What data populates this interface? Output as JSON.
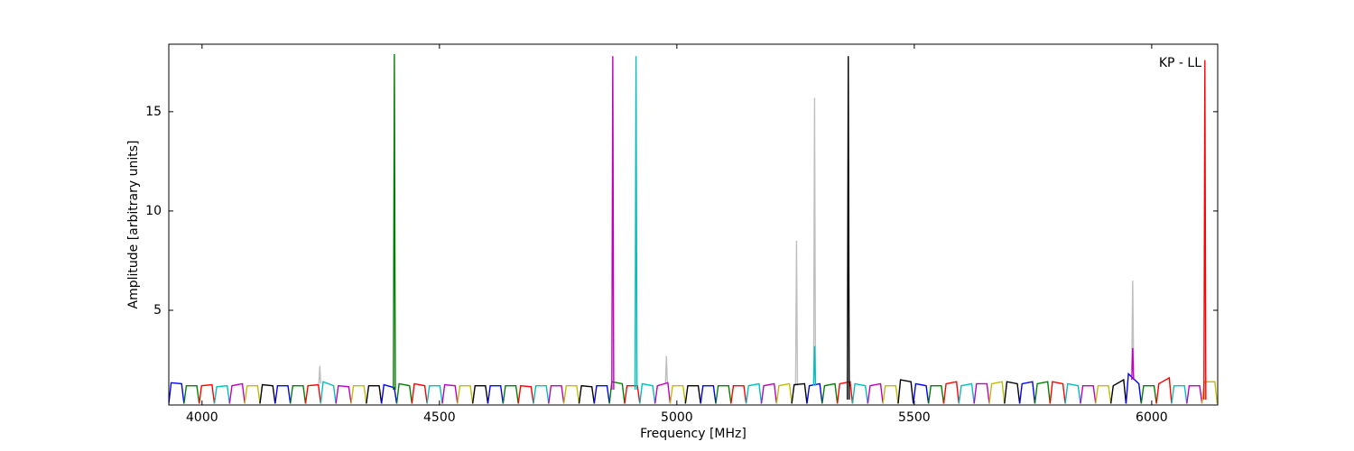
{
  "chart_data": {
    "type": "line",
    "xlabel": "Frequency [MHz]",
    "ylabel": "Amplitude [arbitrary units]",
    "annotation": "KP - LL",
    "xlim": [
      3930,
      6139
    ],
    "ylim": [
      0.23,
      18.4
    ],
    "xticks": [
      4000,
      4500,
      5000,
      5500,
      6000
    ],
    "yticks": [
      5,
      10,
      15
    ],
    "series": [
      {
        "color": "#bfbfbf",
        "x": [
          4246,
          4248,
          4250
        ],
        "values": [
          1.3,
          2.2,
          1.3
        ]
      },
      {
        "color": "#bfbfbf",
        "x": [
          4976,
          4978,
          4980
        ],
        "values": [
          1.3,
          2.7,
          1.3
        ]
      },
      {
        "color": "#bfbfbf",
        "x": [
          5250,
          5252,
          5254
        ],
        "values": [
          1.2,
          8.5,
          1.2
        ]
      },
      {
        "color": "#bfbfbf",
        "x": [
          5288,
          5290,
          5292
        ],
        "values": [
          1.2,
          15.7,
          1.2
        ]
      },
      {
        "color": "#bfbfbf",
        "x": [
          5958,
          5960,
          5962
        ],
        "values": [
          2.0,
          6.5,
          2.0
        ]
      },
      {
        "color": "#0000ff",
        "x": [
          3930,
          3935,
          3957,
          3962
        ],
        "values": [
          0.3,
          1.35,
          1.3,
          0.3
        ]
      },
      {
        "color": "#008000",
        "x": [
          3962,
          3967,
          3989,
          3994
        ],
        "values": [
          0.3,
          1.2,
          1.2,
          0.3
        ]
      },
      {
        "color": "#ff0000",
        "x": [
          3994,
          3999,
          4021,
          4026
        ],
        "values": [
          0.3,
          1.2,
          1.25,
          0.3
        ]
      },
      {
        "color": "#00bfbf",
        "x": [
          4026,
          4031,
          4053,
          4058
        ],
        "values": [
          0.3,
          1.15,
          1.2,
          0.3
        ]
      },
      {
        "color": "#bf00bf",
        "x": [
          4058,
          4063,
          4085,
          4090
        ],
        "values": [
          0.3,
          1.2,
          1.3,
          0.3
        ]
      },
      {
        "color": "#bfbf00",
        "x": [
          4090,
          4095,
          4117,
          4122
        ],
        "values": [
          0.3,
          1.2,
          1.2,
          0.3
        ]
      },
      {
        "color": "#000000",
        "x": [
          4122,
          4127,
          4149,
          4154
        ],
        "values": [
          0.3,
          1.25,
          1.2,
          0.3
        ]
      },
      {
        "color": "#0000ff",
        "x": [
          4154,
          4159,
          4181,
          4186
        ],
        "values": [
          0.3,
          1.2,
          1.2,
          0.3
        ]
      },
      {
        "color": "#008000",
        "x": [
          4186,
          4191,
          4213,
          4218
        ],
        "values": [
          0.3,
          1.2,
          1.2,
          0.3
        ]
      },
      {
        "color": "#ff0000",
        "x": [
          4218,
          4223,
          4245,
          4250
        ],
        "values": [
          0.3,
          1.2,
          1.25,
          0.3
        ]
      },
      {
        "color": "#00bfbf",
        "x": [
          4250,
          4255,
          4277,
          4282
        ],
        "values": [
          0.3,
          1.4,
          1.2,
          0.3
        ]
      },
      {
        "color": "#bf00bf",
        "x": [
          4282,
          4287,
          4309,
          4314
        ],
        "values": [
          0.3,
          1.2,
          1.15,
          0.3
        ]
      },
      {
        "color": "#bfbf00",
        "x": [
          4314,
          4319,
          4341,
          4346
        ],
        "values": [
          0.3,
          1.2,
          1.2,
          0.3
        ]
      },
      {
        "color": "#000000",
        "x": [
          4346,
          4351,
          4373,
          4378
        ],
        "values": [
          0.3,
          1.2,
          1.2,
          0.3
        ]
      },
      {
        "color": "#0000ff",
        "x": [
          4378,
          4383,
          4405,
          4410
        ],
        "values": [
          0.3,
          1.25,
          1.1,
          0.3
        ]
      },
      {
        "color": "#008000",
        "x": [
          4410,
          4415,
          4437,
          4442
        ],
        "values": [
          0.3,
          1.3,
          1.2,
          0.3
        ]
      },
      {
        "color": "#ff0000",
        "x": [
          4442,
          4447,
          4469,
          4474
        ],
        "values": [
          0.3,
          1.3,
          1.2,
          0.3
        ]
      },
      {
        "color": "#00bfbf",
        "x": [
          4474,
          4479,
          4501,
          4506
        ],
        "values": [
          0.3,
          1.2,
          1.2,
          0.3
        ]
      },
      {
        "color": "#bf00bf",
        "x": [
          4506,
          4511,
          4533,
          4538
        ],
        "values": [
          0.3,
          1.25,
          1.2,
          0.3
        ]
      },
      {
        "color": "#bfbf00",
        "x": [
          4538,
          4543,
          4565,
          4570
        ],
        "values": [
          0.3,
          1.2,
          1.2,
          0.3
        ]
      },
      {
        "color": "#000000",
        "x": [
          4570,
          4575,
          4597,
          4602
        ],
        "values": [
          0.3,
          1.2,
          1.2,
          0.3
        ]
      },
      {
        "color": "#0000ff",
        "x": [
          4602,
          4607,
          4629,
          4634
        ],
        "values": [
          0.3,
          1.2,
          1.2,
          0.3
        ]
      },
      {
        "color": "#008000",
        "x": [
          4634,
          4639,
          4661,
          4666
        ],
        "values": [
          0.3,
          1.2,
          1.2,
          0.3
        ]
      },
      {
        "color": "#ff0000",
        "x": [
          4666,
          4671,
          4693,
          4698
        ],
        "values": [
          0.3,
          1.2,
          1.15,
          0.3
        ]
      },
      {
        "color": "#00bfbf",
        "x": [
          4698,
          4703,
          4725,
          4730
        ],
        "values": [
          0.3,
          1.2,
          1.2,
          0.3
        ]
      },
      {
        "color": "#bf00bf",
        "x": [
          4730,
          4735,
          4757,
          4762
        ],
        "values": [
          0.3,
          1.2,
          1.2,
          0.3
        ]
      },
      {
        "color": "#bfbf00",
        "x": [
          4762,
          4767,
          4789,
          4794
        ],
        "values": [
          0.3,
          1.2,
          1.2,
          0.3
        ]
      },
      {
        "color": "#000000",
        "x": [
          4794,
          4799,
          4821,
          4826
        ],
        "values": [
          0.3,
          1.2,
          1.15,
          0.3
        ]
      },
      {
        "color": "#0000ff",
        "x": [
          4826,
          4831,
          4853,
          4858
        ],
        "values": [
          0.3,
          1.2,
          1.2,
          0.3
        ]
      },
      {
        "color": "#008000",
        "x": [
          4858,
          4863,
          4885,
          4890
        ],
        "values": [
          0.3,
          1.4,
          1.3,
          0.3
        ]
      },
      {
        "color": "#ff0000",
        "x": [
          4890,
          4895,
          4917,
          4922
        ],
        "values": [
          0.3,
          1.2,
          1.2,
          0.3
        ]
      },
      {
        "color": "#00bfbf",
        "x": [
          4922,
          4927,
          4949,
          4954
        ],
        "values": [
          0.3,
          1.3,
          1.2,
          0.3
        ]
      },
      {
        "color": "#bf00bf",
        "x": [
          4954,
          4959,
          4981,
          4986
        ],
        "values": [
          0.3,
          1.2,
          1.35,
          0.3
        ]
      },
      {
        "color": "#bfbf00",
        "x": [
          4986,
          4991,
          5013,
          5018
        ],
        "values": [
          0.3,
          1.2,
          1.2,
          0.3
        ]
      },
      {
        "color": "#000000",
        "x": [
          5018,
          5023,
          5045,
          5050
        ],
        "values": [
          0.3,
          1.2,
          1.2,
          0.3
        ]
      },
      {
        "color": "#0000ff",
        "x": [
          5050,
          5055,
          5077,
          5082
        ],
        "values": [
          0.3,
          1.2,
          1.2,
          0.3
        ]
      },
      {
        "color": "#008000",
        "x": [
          5082,
          5087,
          5109,
          5114
        ],
        "values": [
          0.3,
          1.2,
          1.2,
          0.3
        ]
      },
      {
        "color": "#ff0000",
        "x": [
          5114,
          5119,
          5141,
          5146
        ],
        "values": [
          0.3,
          1.2,
          1.2,
          0.3
        ]
      },
      {
        "color": "#00bfbf",
        "x": [
          5146,
          5151,
          5173,
          5178
        ],
        "values": [
          0.3,
          1.2,
          1.3,
          0.3
        ]
      },
      {
        "color": "#bf00bf",
        "x": [
          5178,
          5183,
          5205,
          5210
        ],
        "values": [
          0.3,
          1.2,
          1.3,
          0.3
        ]
      },
      {
        "color": "#bfbf00",
        "x": [
          5210,
          5215,
          5237,
          5242
        ],
        "values": [
          0.3,
          1.2,
          1.3,
          0.3
        ]
      },
      {
        "color": "#000000",
        "x": [
          5242,
          5247,
          5269,
          5274
        ],
        "values": [
          0.3,
          1.25,
          1.3,
          0.3
        ]
      },
      {
        "color": "#0000ff",
        "x": [
          5274,
          5279,
          5301,
          5306
        ],
        "values": [
          0.3,
          1.2,
          1.3,
          0.3
        ]
      },
      {
        "color": "#008000",
        "x": [
          5306,
          5311,
          5333,
          5338
        ],
        "values": [
          0.3,
          1.2,
          1.3,
          0.3
        ]
      },
      {
        "color": "#ff0000",
        "x": [
          5338,
          5343,
          5365,
          5370
        ],
        "values": [
          0.3,
          1.3,
          1.4,
          0.3
        ]
      },
      {
        "color": "#00bfbf",
        "x": [
          5370,
          5375,
          5397,
          5402
        ],
        "values": [
          0.3,
          1.3,
          1.2,
          0.3
        ]
      },
      {
        "color": "#bf00bf",
        "x": [
          5402,
          5407,
          5429,
          5434
        ],
        "values": [
          0.3,
          1.2,
          1.3,
          0.3
        ]
      },
      {
        "color": "#bfbf00",
        "x": [
          5434,
          5439,
          5461,
          5466
        ],
        "values": [
          0.3,
          1.2,
          1.2,
          0.3
        ]
      },
      {
        "color": "#000000",
        "x": [
          5466,
          5471,
          5493,
          5498
        ],
        "values": [
          0.3,
          1.5,
          1.4,
          0.3
        ]
      },
      {
        "color": "#0000ff",
        "x": [
          5498,
          5503,
          5525,
          5530
        ],
        "values": [
          0.3,
          1.3,
          1.2,
          0.3
        ]
      },
      {
        "color": "#008000",
        "x": [
          5530,
          5535,
          5557,
          5562
        ],
        "values": [
          0.3,
          1.2,
          1.2,
          0.3
        ]
      },
      {
        "color": "#ff0000",
        "x": [
          5562,
          5567,
          5589,
          5594
        ],
        "values": [
          0.3,
          1.3,
          1.4,
          0.3
        ]
      },
      {
        "color": "#00bfbf",
        "x": [
          5594,
          5599,
          5621,
          5626
        ],
        "values": [
          0.3,
          1.2,
          1.3,
          0.3
        ]
      },
      {
        "color": "#bf00bf",
        "x": [
          5626,
          5631,
          5653,
          5658
        ],
        "values": [
          0.3,
          1.3,
          1.3,
          0.3
        ]
      },
      {
        "color": "#bfbf00",
        "x": [
          5658,
          5663,
          5685,
          5690
        ],
        "values": [
          0.3,
          1.3,
          1.4,
          0.3
        ]
      },
      {
        "color": "#000000",
        "x": [
          5690,
          5695,
          5717,
          5722
        ],
        "values": [
          0.3,
          1.4,
          1.3,
          0.3
        ]
      },
      {
        "color": "#0000ff",
        "x": [
          5722,
          5727,
          5749,
          5754
        ],
        "values": [
          0.3,
          1.3,
          1.4,
          0.3
        ]
      },
      {
        "color": "#008000",
        "x": [
          5754,
          5759,
          5781,
          5786
        ],
        "values": [
          0.3,
          1.3,
          1.4,
          0.3
        ]
      },
      {
        "color": "#ff0000",
        "x": [
          5786,
          5791,
          5813,
          5818
        ],
        "values": [
          0.3,
          1.4,
          1.3,
          0.3
        ]
      },
      {
        "color": "#00bfbf",
        "x": [
          5818,
          5823,
          5845,
          5850
        ],
        "values": [
          0.3,
          1.3,
          1.2,
          0.3
        ]
      },
      {
        "color": "#bf00bf",
        "x": [
          5850,
          5855,
          5877,
          5882
        ],
        "values": [
          0.3,
          1.2,
          1.2,
          0.3
        ]
      },
      {
        "color": "#bfbf00",
        "x": [
          5882,
          5887,
          5909,
          5914
        ],
        "values": [
          0.3,
          1.2,
          1.2,
          0.3
        ]
      },
      {
        "color": "#000000",
        "x": [
          5914,
          5919,
          5941,
          5946
        ],
        "values": [
          0.3,
          1.2,
          1.5,
          0.3
        ]
      },
      {
        "color": "#0000ff",
        "x": [
          5946,
          5951,
          5973,
          5978
        ],
        "values": [
          0.3,
          1.8,
          1.3,
          0.3
        ]
      },
      {
        "color": "#008000",
        "x": [
          5978,
          5983,
          6005,
          6010
        ],
        "values": [
          0.3,
          1.2,
          1.2,
          0.3
        ]
      },
      {
        "color": "#ff0000",
        "x": [
          6010,
          6015,
          6037,
          6042
        ],
        "values": [
          0.3,
          1.3,
          1.6,
          0.3
        ]
      },
      {
        "color": "#00bfbf",
        "x": [
          6042,
          6047,
          6069,
          6074
        ],
        "values": [
          0.3,
          1.2,
          1.2,
          0.3
        ]
      },
      {
        "color": "#bf00bf",
        "x": [
          6074,
          6079,
          6101,
          6106
        ],
        "values": [
          0.3,
          1.2,
          1.2,
          0.3
        ]
      },
      {
        "color": "#bfbf00",
        "x": [
          6106,
          6111,
          6133,
          6138
        ],
        "values": [
          0.3,
          1.4,
          1.4,
          0.3
        ]
      },
      {
        "color": "#008000",
        "x": [
          4403,
          4405,
          4407
        ],
        "values": [
          1.0,
          17.9,
          1.0
        ]
      },
      {
        "color": "#bf00bf",
        "x": [
          4863,
          4865,
          4867
        ],
        "values": [
          1.0,
          17.8,
          1.0
        ]
      },
      {
        "color": "#00bfbf",
        "x": [
          4912,
          4914,
          4916
        ],
        "values": [
          1.0,
          17.8,
          1.0
        ]
      },
      {
        "color": "#00bfbf",
        "x": [
          5288,
          5290,
          5292
        ],
        "values": [
          1.2,
          3.2,
          1.2
        ]
      },
      {
        "color": "#000000",
        "x": [
          5359,
          5361,
          5363
        ],
        "values": [
          0.5,
          17.8,
          0.5
        ]
      },
      {
        "color": "#bf00bf",
        "x": [
          5958,
          5960,
          5962
        ],
        "values": [
          1.5,
          3.1,
          1.5
        ]
      },
      {
        "color": "#ff0000",
        "x": [
          6110,
          6112,
          6114
        ],
        "values": [
          0.5,
          17.6,
          0.5
        ]
      }
    ]
  }
}
